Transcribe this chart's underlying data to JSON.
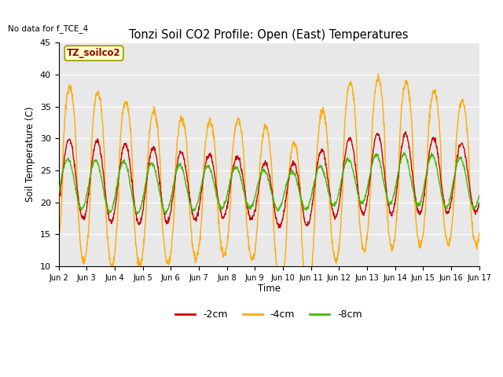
{
  "title": "Tonzi Soil CO2 Profile: Open (East) Temperatures",
  "no_data_label": "No data for f_TCE_4",
  "ylabel": "Soil Temperature (C)",
  "xlabel": "Time",
  "ylim": [
    10,
    45
  ],
  "xlim": [
    0,
    15
  ],
  "annotation_box": "TZ_soilco2",
  "background_color": "#e8e8e8",
  "series": {
    "neg2cm": {
      "label": "-2cm",
      "color": "#cc0000"
    },
    "neg4cm": {
      "label": "-4cm",
      "color": "#ffaa00"
    },
    "neg8cm": {
      "label": "-8cm",
      "color": "#44bb00"
    }
  },
  "x_tick_labels": [
    "Jun 2",
    "Jun 3",
    "Jun 4",
    "Jun 5",
    "Jun 6",
    "Jun 7",
    "Jun 8",
    "Jun 9",
    "Jun 10",
    "Jun 11",
    "Jun 12",
    "Jun 13",
    "Jun 14",
    "Jun 15",
    "Jun 16",
    "Jun 17"
  ],
  "x_tick_positions": [
    0,
    1,
    2,
    3,
    4,
    5,
    6,
    7,
    8,
    9,
    10,
    11,
    12,
    13,
    14,
    15
  ],
  "yticks": [
    10,
    15,
    20,
    25,
    30,
    35,
    40,
    45
  ]
}
